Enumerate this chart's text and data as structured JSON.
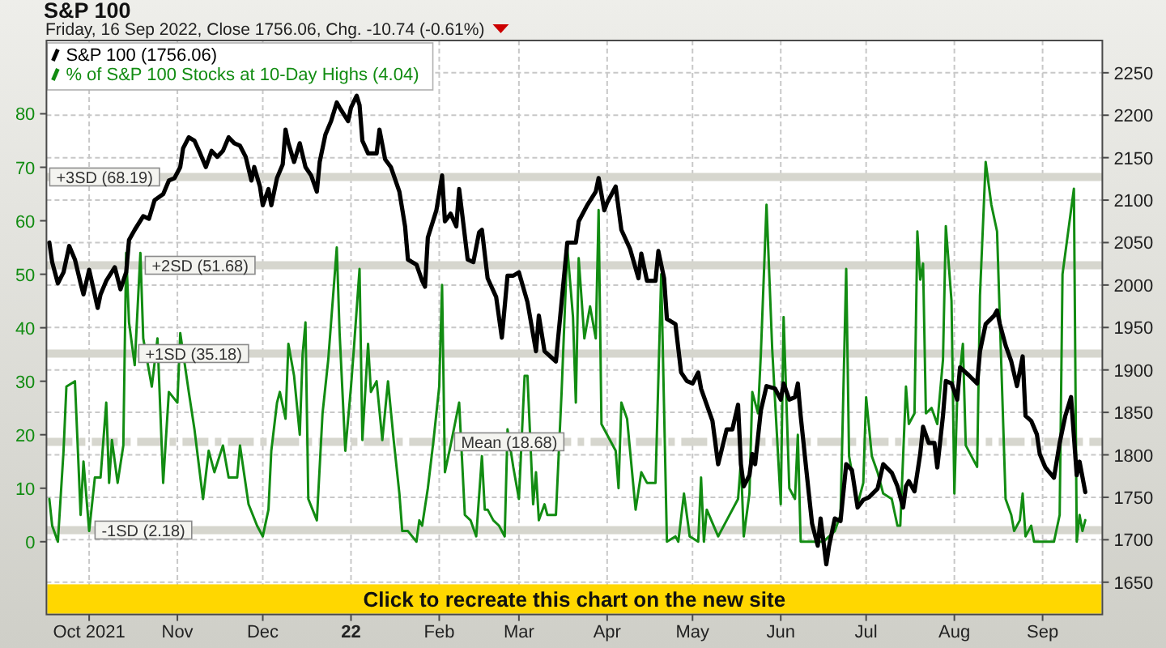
{
  "chart_data": {
    "type": "line",
    "title": "S&P 100",
    "subtitle": "Friday, 16 Sep 2022, Close 1756.06, Chg. -10.74 (-0.61%)",
    "annotations": [
      "Click to recreate this chart on the new site"
    ],
    "xlim": [
      "2021-09-16",
      "2022-09-22"
    ],
    "xticks": [
      {
        "value": "2021-10-01",
        "label": "Oct 2021"
      },
      {
        "value": "2021-11-01",
        "label": "Nov"
      },
      {
        "value": "2021-12-01",
        "label": "Dec"
      },
      {
        "value": "2022-01-01",
        "label": "22"
      },
      {
        "value": "2022-02-01",
        "label": "Feb"
      },
      {
        "value": "2022-03-01",
        "label": "Mar"
      },
      {
        "value": "2022-04-01",
        "label": "Apr"
      },
      {
        "value": "2022-05-01",
        "label": "May"
      },
      {
        "value": "2022-06-01",
        "label": "Jun"
      },
      {
        "value": "2022-07-01",
        "label": "Jul"
      },
      {
        "value": "2022-08-01",
        "label": "Aug"
      },
      {
        "value": "2022-09-01",
        "label": "Sep"
      }
    ],
    "ylim": [
      -13.6,
      93.7
    ],
    "yticks": [
      0,
      10,
      20,
      30,
      40,
      50,
      60,
      70,
      80
    ],
    "y2lim": [
      1612,
      2288
    ],
    "y2ticks": [
      1650,
      1700,
      1750,
      1800,
      1850,
      1900,
      1950,
      2000,
      2050,
      2100,
      2150,
      2200,
      2250
    ],
    "grid": true,
    "legend": "top left",
    "ref_lines": [
      {
        "axis": "y",
        "value": 68.19,
        "label": "+3SD (68.19)",
        "color": "#d6d6ce"
      },
      {
        "axis": "y",
        "value": 51.68,
        "label": "+2SD (51.68)",
        "color": "#d6d6ce"
      },
      {
        "axis": "y",
        "value": 35.18,
        "label": "+1SD (35.18)",
        "color": "#d6d6ce"
      },
      {
        "axis": "y",
        "value": 18.68,
        "label": "Mean (18.68)",
        "color": "#d6d6ce",
        "line_style": "dashed"
      },
      {
        "axis": "y",
        "value": 2.18,
        "label": "-1SD (2.18)",
        "color": "#d6d6ce"
      }
    ],
    "series": [
      {
        "name": "S&P 100 (1756.06)",
        "color": "#000000",
        "axis": "y2",
        "x": [
          "2021-09-17",
          "2021-09-18",
          "2021-09-20",
          "2021-09-22",
          "2021-09-24",
          "2021-09-26",
          "2021-09-28",
          "2021-09-29",
          "2021-10-01",
          "2021-10-04",
          "2021-10-05",
          "2021-10-07",
          "2021-10-10",
          "2021-10-12",
          "2021-10-14",
          "2021-10-15",
          "2021-10-17",
          "2021-10-20",
          "2021-10-22",
          "2021-10-24",
          "2021-10-27",
          "2021-10-29",
          "2021-10-31",
          "2021-11-02",
          "2021-11-03",
          "2021-11-05",
          "2021-11-07",
          "2021-11-09",
          "2021-11-11",
          "2021-11-13",
          "2021-11-15",
          "2021-11-17",
          "2021-11-19",
          "2021-11-21",
          "2021-11-23",
          "2021-11-25",
          "2021-11-27",
          "2021-11-28",
          "2021-11-30",
          "2021-12-01",
          "2021-12-03",
          "2021-12-04",
          "2021-12-06",
          "2021-12-08",
          "2021-12-09",
          "2021-12-10",
          "2021-12-12",
          "2021-12-14",
          "2021-12-16",
          "2021-12-18",
          "2021-12-20",
          "2021-12-21",
          "2021-12-23",
          "2021-12-25",
          "2021-12-27",
          "2021-12-28",
          "2021-12-31",
          "2022-01-01",
          "2022-01-03",
          "2022-01-04",
          "2022-01-05",
          "2022-01-07",
          "2022-01-10",
          "2022-01-11",
          "2022-01-13",
          "2022-01-15",
          "2022-01-18",
          "2022-01-20",
          "2022-01-21",
          "2022-01-24",
          "2022-01-26",
          "2022-01-27",
          "2022-01-28",
          "2022-01-31",
          "2022-02-02",
          "2022-02-03",
          "2022-02-05",
          "2022-02-07",
          "2022-02-08",
          "2022-02-11",
          "2022-02-13",
          "2022-02-15",
          "2022-02-16",
          "2022-02-18",
          "2022-02-21",
          "2022-02-23",
          "2022-02-25",
          "2022-02-27",
          "2022-03-01",
          "2022-03-04",
          "2022-03-07",
          "2022-03-08",
          "2022-03-10",
          "2022-03-14",
          "2022-03-16",
          "2022-03-18",
          "2022-03-21",
          "2022-03-22",
          "2022-03-25",
          "2022-03-28",
          "2022-03-29",
          "2022-03-31",
          "2022-04-01",
          "2022-04-04",
          "2022-04-06",
          "2022-04-09",
          "2022-04-12",
          "2022-04-13",
          "2022-04-15",
          "2022-04-18",
          "2022-04-19",
          "2022-04-21",
          "2022-04-22",
          "2022-04-25",
          "2022-04-27",
          "2022-04-29",
          "2022-05-01",
          "2022-05-03",
          "2022-05-04",
          "2022-05-08",
          "2022-05-10",
          "2022-05-13",
          "2022-05-15",
          "2022-05-17",
          "2022-05-18",
          "2022-05-19",
          "2022-05-21",
          "2022-05-22",
          "2022-05-23",
          "2022-05-25",
          "2022-05-27",
          "2022-05-30",
          "2022-06-01",
          "2022-06-02",
          "2022-06-04",
          "2022-06-06",
          "2022-06-07",
          "2022-06-08",
          "2022-06-10",
          "2022-06-12",
          "2022-06-14",
          "2022-06-15",
          "2022-06-17",
          "2022-06-18",
          "2022-06-20",
          "2022-06-22",
          "2022-06-24",
          "2022-06-26",
          "2022-06-28",
          "2022-06-30",
          "2022-07-02",
          "2022-07-05",
          "2022-07-07",
          "2022-07-10",
          "2022-07-12",
          "2022-07-14",
          "2022-07-15",
          "2022-07-16",
          "2022-07-18",
          "2022-07-20",
          "2022-07-21",
          "2022-07-23",
          "2022-07-25",
          "2022-07-26",
          "2022-07-28",
          "2022-07-29",
          "2022-07-31",
          "2022-08-02",
          "2022-08-03",
          "2022-08-06",
          "2022-08-09",
          "2022-08-10",
          "2022-08-12",
          "2022-08-15",
          "2022-08-16",
          "2022-08-17",
          "2022-08-19",
          "2022-08-21",
          "2022-08-23",
          "2022-08-25",
          "2022-08-26",
          "2022-08-28",
          "2022-08-30",
          "2022-08-31",
          "2022-09-02",
          "2022-09-05",
          "2022-09-07",
          "2022-09-09",
          "2022-09-11",
          "2022-09-13",
          "2022-09-14",
          "2022-09-16"
        ],
        "values": [
          2050,
          2027,
          2002,
          2015,
          2046,
          2030,
          2002,
          1989,
          2018,
          1973,
          1989,
          2005,
          2021,
          1995,
          2015,
          2053,
          2065,
          2081,
          2078,
          2100,
          2107,
          2123,
          2126,
          2139,
          2161,
          2174,
          2170,
          2155,
          2139,
          2158,
          2151,
          2158,
          2174,
          2167,
          2164,
          2151,
          2123,
          2139,
          2116,
          2094,
          2113,
          2094,
          2126,
          2142,
          2183,
          2167,
          2145,
          2167,
          2139,
          2129,
          2110,
          2145,
          2177,
          2193,
          2215,
          2209,
          2193,
          2209,
          2223,
          2212,
          2170,
          2155,
          2155,
          2183,
          2148,
          2139,
          2110,
          2069,
          2030,
          2024,
          2005,
          1998,
          2056,
          2088,
          2129,
          2075,
          2084,
          2069,
          2113,
          2030,
          2027,
          2062,
          2065,
          2008,
          1986,
          1938,
          2011,
          2011,
          2015,
          1980,
          1922,
          1964,
          1922,
          1910,
          1980,
          2050,
          2050,
          2075,
          2094,
          2110,
          2126,
          2088,
          2097,
          2116,
          2065,
          2043,
          2008,
          2037,
          2005,
          2005,
          2040,
          2008,
          1960,
          1954,
          1897,
          1887,
          1884,
          1897,
          1878,
          1840,
          1789,
          1830,
          1830,
          1859,
          1789,
          1763,
          1776,
          1801,
          1789,
          1852,
          1881,
          1878,
          1865,
          1884,
          1865,
          1868,
          1884,
          1846,
          1782,
          1719,
          1693,
          1725,
          1671,
          1693,
          1725,
          1722,
          1789,
          1782,
          1738,
          1747,
          1750,
          1760,
          1789,
          1779,
          1763,
          1738,
          1763,
          1769,
          1757,
          1801,
          1833,
          1814,
          1814,
          1785,
          1846,
          1887,
          1884,
          1865,
          1903,
          1894,
          1884,
          1922,
          1954,
          1964,
          1970,
          1954,
          1929,
          1910,
          1881,
          1916,
          1846,
          1840,
          1824,
          1801,
          1785,
          1773,
          1814,
          1846,
          1868,
          1776,
          1792,
          1756.06
        ]
      },
      {
        "name": "% of S&P 100 Stocks at 10-Day Highs (4.04)",
        "color": "#128c12",
        "x": [
          "2021-09-17",
          "2021-09-18",
          "2021-09-20",
          "2021-09-22",
          "2021-09-23",
          "2021-09-26",
          "2021-09-28",
          "2021-09-29",
          "2021-10-01",
          "2021-10-03",
          "2021-10-05",
          "2021-10-07",
          "2021-10-08",
          "2021-10-09",
          "2021-10-11",
          "2021-10-13",
          "2021-10-14",
          "2021-10-15",
          "2021-10-17",
          "2021-10-19",
          "2021-10-20",
          "2021-10-23",
          "2021-10-25",
          "2021-10-27",
          "2021-10-29",
          "2021-11-01",
          "2021-11-02",
          "2021-11-05",
          "2021-11-07",
          "2021-11-10",
          "2021-11-12",
          "2021-11-14",
          "2021-11-17",
          "2021-11-19",
          "2021-11-22",
          "2021-11-23",
          "2021-11-26",
          "2021-11-29",
          "2021-12-01",
          "2021-12-03",
          "2021-12-04",
          "2021-12-06",
          "2021-12-07",
          "2021-12-09",
          "2021-12-10",
          "2021-12-12",
          "2021-12-14",
          "2021-12-15",
          "2021-12-16",
          "2021-12-17",
          "2021-12-20",
          "2021-12-22",
          "2021-12-24",
          "2021-12-27",
          "2021-12-28",
          "2021-12-30",
          "2022-01-01",
          "2022-01-02",
          "2022-01-04",
          "2022-01-05",
          "2022-01-07",
          "2022-01-08",
          "2022-01-10",
          "2022-01-12",
          "2022-01-14",
          "2022-01-16",
          "2022-01-18",
          "2022-01-19",
          "2022-01-21",
          "2022-01-24",
          "2022-01-25",
          "2022-01-26",
          "2022-01-28",
          "2022-01-30",
          "2022-02-01",
          "2022-02-02",
          "2022-02-03",
          "2022-02-05",
          "2022-02-08",
          "2022-02-10",
          "2022-02-12",
          "2022-02-14",
          "2022-02-16",
          "2022-02-17",
          "2022-02-18",
          "2022-02-20",
          "2022-02-22",
          "2022-02-24",
          "2022-02-25",
          "2022-02-27",
          "2022-03-01",
          "2022-03-03",
          "2022-03-04",
          "2022-03-06",
          "2022-03-07",
          "2022-03-08",
          "2022-03-10",
          "2022-03-11",
          "2022-03-14",
          "2022-03-16",
          "2022-03-18",
          "2022-03-20",
          "2022-03-21",
          "2022-03-22",
          "2022-03-24",
          "2022-03-26",
          "2022-03-28",
          "2022-03-29",
          "2022-03-30",
          "2022-04-01",
          "2022-04-04",
          "2022-04-05",
          "2022-04-06",
          "2022-04-08",
          "2022-04-11",
          "2022-04-13",
          "2022-04-15",
          "2022-04-18",
          "2022-04-20",
          "2022-04-22",
          "2022-04-25",
          "2022-04-26",
          "2022-04-28",
          "2022-04-30",
          "2022-05-03",
          "2022-05-04",
          "2022-05-05",
          "2022-05-06",
          "2022-05-10",
          "2022-05-13",
          "2022-05-17",
          "2022-05-18",
          "2022-05-19",
          "2022-05-21",
          "2022-05-22",
          "2022-05-24",
          "2022-05-25",
          "2022-05-27",
          "2022-05-29",
          "2022-06-01",
          "2022-06-02",
          "2022-06-04",
          "2022-06-06",
          "2022-06-07",
          "2022-06-08",
          "2022-06-12",
          "2022-06-16",
          "2022-06-18",
          "2022-06-20",
          "2022-06-22",
          "2022-06-24",
          "2022-06-25",
          "2022-06-28",
          "2022-06-30",
          "2022-07-01",
          "2022-07-03",
          "2022-07-05",
          "2022-07-07",
          "2022-07-10",
          "2022-07-12",
          "2022-07-13",
          "2022-07-15",
          "2022-07-16",
          "2022-07-18",
          "2022-07-19",
          "2022-07-20",
          "2022-07-21",
          "2022-07-22",
          "2022-07-24",
          "2022-07-26",
          "2022-07-28",
          "2022-07-29",
          "2022-07-31",
          "2022-08-01",
          "2022-08-02",
          "2022-08-04",
          "2022-08-05",
          "2022-08-07",
          "2022-08-09",
          "2022-08-10",
          "2022-08-12",
          "2022-08-14",
          "2022-08-16",
          "2022-08-19",
          "2022-08-21",
          "2022-08-22",
          "2022-08-24",
          "2022-08-25",
          "2022-08-26",
          "2022-08-28",
          "2022-08-29",
          "2022-09-02",
          "2022-09-05",
          "2022-09-07",
          "2022-09-08",
          "2022-09-12",
          "2022-09-13",
          "2022-09-14",
          "2022-09-15",
          "2022-09-16"
        ],
        "values": [
          8,
          3,
          0,
          17,
          29,
          30,
          5,
          15,
          2,
          12,
          12,
          26,
          11,
          19,
          11,
          18,
          54,
          41,
          33,
          54,
          38,
          29,
          38,
          11,
          28,
          26,
          39,
          28,
          21,
          8,
          17,
          13,
          18,
          12,
          12,
          18,
          7,
          3,
          1,
          6,
          17,
          26,
          28,
          23,
          37,
          31,
          20,
          35,
          41,
          8,
          4,
          24,
          34,
          55,
          39,
          17,
          29,
          36,
          51,
          19,
          37,
          28,
          30,
          19,
          30,
          19,
          9,
          2,
          2,
          0,
          4,
          3,
          10,
          19,
          29,
          48,
          13,
          18,
          26,
          5,
          4,
          1,
          16,
          6,
          6,
          4,
          3,
          1,
          21,
          14,
          8,
          31,
          31,
          7,
          13,
          4,
          7,
          5,
          5,
          28,
          55,
          42,
          26,
          53,
          38,
          44,
          38,
          62,
          22,
          20,
          17,
          10,
          26,
          23,
          6,
          13,
          11,
          11,
          50,
          0,
          1,
          0,
          9,
          1,
          0,
          12,
          0,
          6,
          1,
          4,
          8,
          15,
          1,
          9,
          28,
          24,
          35,
          63,
          36,
          7,
          42,
          10,
          8,
          20,
          0,
          0,
          0,
          1,
          2,
          5,
          51,
          16,
          7,
          11,
          27,
          16,
          13,
          9,
          8,
          3,
          3,
          29,
          22,
          24,
          58,
          49,
          52,
          24,
          25,
          22,
          34,
          59,
          45,
          9,
          27,
          37,
          18,
          16,
          14,
          46,
          71,
          63,
          58,
          8,
          5,
          2,
          4,
          9,
          1,
          3,
          0,
          0,
          0,
          5,
          50,
          66,
          0,
          5,
          2,
          4.04
        ]
      }
    ]
  }
}
